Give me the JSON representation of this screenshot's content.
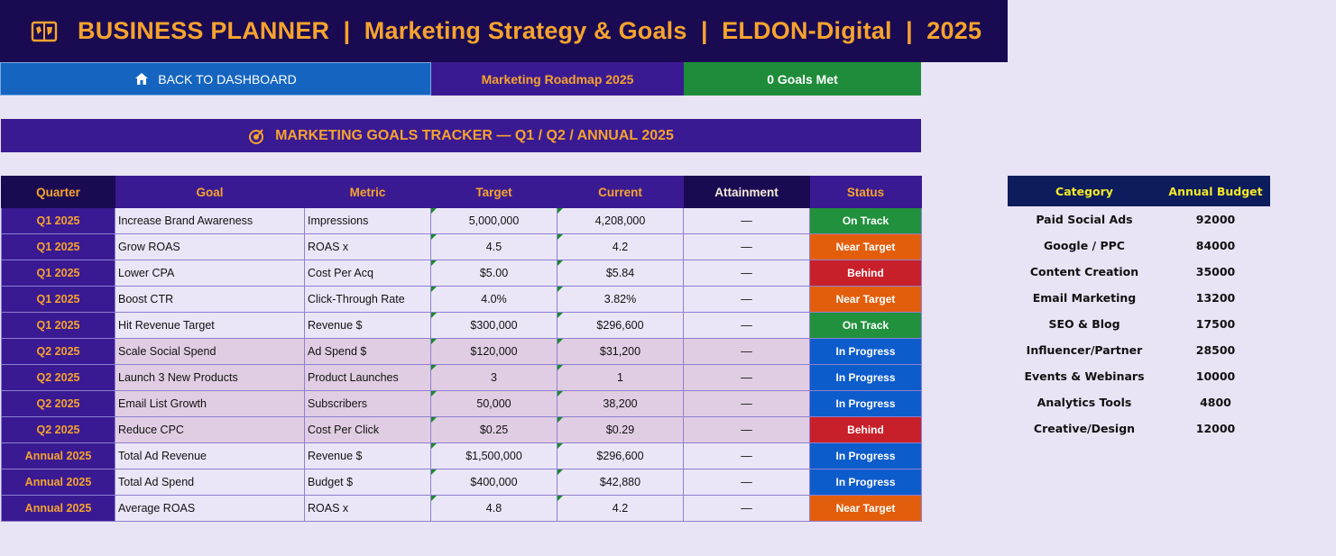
{
  "header": {
    "title": "BUSINESS PLANNER  |  Marketing Strategy & Goals  |  ELDON-Digital  |  2025",
    "icon": "map-book-icon"
  },
  "nav": {
    "back_label": "BACK TO DASHBOARD",
    "back_icon": "home-icon",
    "roadmap_label": "Marketing Roadmap 2025",
    "goals_met_label": "0 Goals Met"
  },
  "section": {
    "title": "MARKETING GOALS TRACKER — Q1 / Q2 / ANNUAL 2025",
    "icon": "target-icon"
  },
  "goals_table": {
    "headers": [
      "Quarter",
      "Goal",
      "Metric",
      "Target",
      "Current",
      "Attainment",
      "Status"
    ],
    "rows": [
      {
        "quarter": "Q1 2025",
        "goal": "Increase Brand Awareness",
        "metric": "Impressions",
        "target": "5,000,000",
        "current": "4,208,000",
        "attainment": "—",
        "status": "On Track"
      },
      {
        "quarter": "Q1 2025",
        "goal": "Grow ROAS",
        "metric": "ROAS x",
        "target": "4.5",
        "current": "4.2",
        "attainment": "—",
        "status": "Near Target"
      },
      {
        "quarter": "Q1 2025",
        "goal": "Lower CPA",
        "metric": "Cost Per Acq",
        "target": "$5.00",
        "current": "$5.84",
        "attainment": "—",
        "status": "Behind"
      },
      {
        "quarter": "Q1 2025",
        "goal": "Boost CTR",
        "metric": "Click-Through Rate",
        "target": "4.0%",
        "current": "3.82%",
        "attainment": "—",
        "status": "Near Target"
      },
      {
        "quarter": "Q1 2025",
        "goal": "Hit Revenue Target",
        "metric": "Revenue $",
        "target": "$300,000",
        "current": "$296,600",
        "attainment": "—",
        "status": "On Track"
      },
      {
        "quarter": "Q2 2025",
        "goal": "Scale Social Spend",
        "metric": "Ad Spend $",
        "target": "$120,000",
        "current": "$31,200",
        "attainment": "—",
        "status": "In Progress"
      },
      {
        "quarter": "Q2 2025",
        "goal": "Launch 3 New Products",
        "metric": "Product Launches",
        "target": "3",
        "current": "1",
        "attainment": "—",
        "status": "In Progress"
      },
      {
        "quarter": "Q2 2025",
        "goal": "Email List Growth",
        "metric": "Subscribers",
        "target": "50,000",
        "current": "38,200",
        "attainment": "—",
        "status": "In Progress"
      },
      {
        "quarter": "Q2 2025",
        "goal": "Reduce CPC",
        "metric": "Cost Per Click",
        "target": "$0.25",
        "current": "$0.29",
        "attainment": "—",
        "status": "Behind"
      },
      {
        "quarter": "Annual 2025",
        "goal": "Total Ad Revenue",
        "metric": "Revenue $",
        "target": "$1,500,000",
        "current": "$296,600",
        "attainment": "—",
        "status": "In Progress"
      },
      {
        "quarter": "Annual 2025",
        "goal": "Total Ad Spend",
        "metric": "Budget $",
        "target": "$400,000",
        "current": "$42,880",
        "attainment": "—",
        "status": "In Progress"
      },
      {
        "quarter": "Annual 2025",
        "goal": "Average ROAS",
        "metric": "ROAS x",
        "target": "4.8",
        "current": "4.2",
        "attainment": "—",
        "status": "Near Target"
      }
    ]
  },
  "budget_table": {
    "headers": [
      "Category",
      "Annual Budget"
    ],
    "rows": [
      {
        "category": "Paid Social Ads",
        "budget": "92000"
      },
      {
        "category": "Google / PPC",
        "budget": "84000"
      },
      {
        "category": "Content Creation",
        "budget": "35000"
      },
      {
        "category": "Email Marketing",
        "budget": "13200"
      },
      {
        "category": "SEO & Blog",
        "budget": "17500"
      },
      {
        "category": "Influencer/Partner",
        "budget": "28500"
      },
      {
        "category": "Events & Webinars",
        "budget": "10000"
      },
      {
        "category": "Analytics Tools",
        "budget": "4800"
      },
      {
        "category": "Creative/Design",
        "budget": "12000"
      }
    ]
  },
  "colors": {
    "title_bg": "#1a0a52",
    "accent_orange": "#f6a32e",
    "purple": "#3a1a92",
    "on_track": "#21913d",
    "near_target": "#e35e0c",
    "behind": "#c8202a",
    "in_progress": "#0d5ccc"
  }
}
